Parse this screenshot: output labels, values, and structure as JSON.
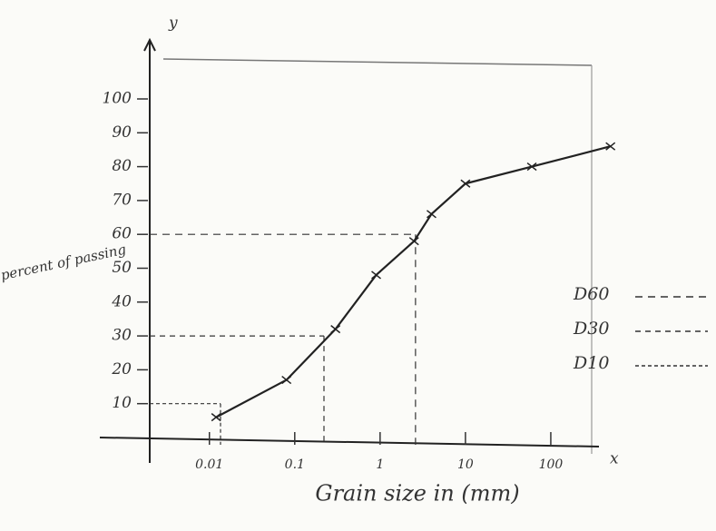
{
  "chart_data": {
    "type": "line",
    "y_axis_symbol": "y",
    "x_axis_symbol": "x",
    "ylabel": "percent of passing",
    "xlabel": "Grain size in (mm)",
    "x": [
      0.012,
      0.08,
      0.3,
      0.9,
      2.5,
      4,
      10,
      60,
      500
    ],
    "values": [
      6,
      17,
      32,
      48,
      58,
      66,
      75,
      80,
      86
    ],
    "color": "#222222",
    "log_x": true,
    "xlim": [
      0.002,
      1000
    ],
    "ylim": [
      0,
      100
    ],
    "xticks": [
      0.01,
      0.1,
      1,
      10,
      100
    ],
    "yticks": [
      10,
      20,
      30,
      40,
      50,
      60,
      70,
      80,
      90,
      100
    ],
    "guides": [
      {
        "label": "D60",
        "x": 2.6,
        "y": 60
      },
      {
        "label": "D30",
        "x": 0.22,
        "y": 30
      },
      {
        "label": "D10",
        "x": 0.0135,
        "y": 10
      }
    ]
  }
}
